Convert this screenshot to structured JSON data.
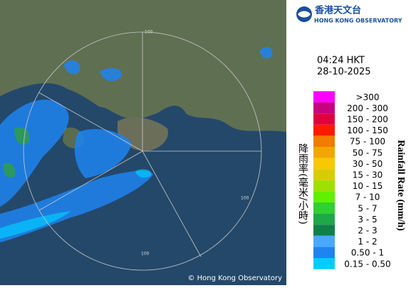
{
  "header": {
    "name_zh": "香港天文台",
    "name_en": "HONG KONG OBSERVATORY"
  },
  "time": "04:24 HKT",
  "date": "28-10-2025",
  "legend": {
    "title_zh": "降雨率(毫米/小時)",
    "title_en": "Rainfall Rate (mm/h)",
    "items": [
      {
        "label": ">300",
        "color": "#ff00ff"
      },
      {
        "label": "200 - 300",
        "color": "#c8007e"
      },
      {
        "label": "150 - 200",
        "color": "#e0003c"
      },
      {
        "label": "100 - 150",
        "color": "#ff1a00"
      },
      {
        "label": "75 - 100",
        "color": "#f07c00"
      },
      {
        "label": "50 - 75",
        "color": "#f0a800"
      },
      {
        "label": "30 - 50",
        "color": "#f8c800"
      },
      {
        "label": "15 - 30",
        "color": "#d8cc00"
      },
      {
        "label": "10 - 15",
        "color": "#a0e000"
      },
      {
        "label": "7 - 10",
        "color": "#60f000"
      },
      {
        "label": "5 - 7",
        "color": "#30d030"
      },
      {
        "label": "3 - 5",
        "color": "#20a848"
      },
      {
        "label": "2 - 3",
        "color": "#108048"
      },
      {
        "label": "1 - 2",
        "color": "#4aa8ff"
      },
      {
        "label": "0.50 - 1",
        "color": "#1e84f0"
      },
      {
        "label": "0.15 - 0.50",
        "color": "#00ccff"
      }
    ]
  },
  "range_labels": [
    "100",
    "100",
    "100"
  ],
  "copyright": "© Hong Kong Observatory"
}
